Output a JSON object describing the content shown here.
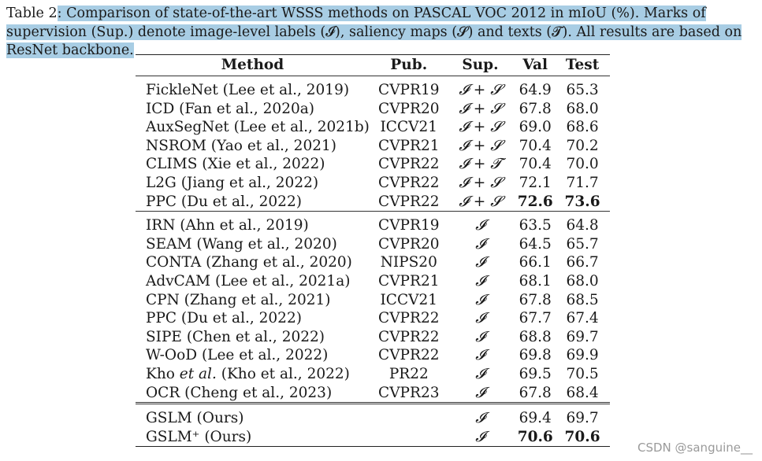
{
  "caption": {
    "prefix": "Table 2",
    "text": ": Comparison of state-of-the-art WSSS methods on PASCAL VOC 2012 in mIoU (%). Marks of supervision (Sup.) denote image-level labels (𝓘), saliency maps (𝓢) and texts (𝓣). All results are based on ResNet backbone."
  },
  "table": {
    "headers": [
      "Method",
      "Pub.",
      "Sup.",
      "Val",
      "Test"
    ],
    "groups": [
      [
        {
          "method": "FickleNet (Lee et al., 2019)",
          "pub": "CVPR19",
          "sup": "𝓘 + 𝓢",
          "val": "64.9",
          "test": "65.3"
        },
        {
          "method": "ICD (Fan et al., 2020a)",
          "pub": "CVPR20",
          "sup": "𝓘 + 𝓢",
          "val": "67.8",
          "test": "68.0"
        },
        {
          "method": "AuxSegNet (Lee et al., 2021b)",
          "pub": "ICCV21",
          "sup": "𝓘 + 𝓢",
          "val": "69.0",
          "test": "68.6"
        },
        {
          "method": "NSROM (Yao et al., 2021)",
          "pub": "CVPR21",
          "sup": "𝓘 + 𝓢",
          "val": "70.4",
          "test": "70.2"
        },
        {
          "method": "CLIMS (Xie et al., 2022)",
          "pub": "CVPR22",
          "sup": "𝓘 + 𝓣",
          "val": "70.4",
          "test": "70.0"
        },
        {
          "method": "L2G (Jiang et al., 2022)",
          "pub": "CVPR22",
          "sup": "𝓘 + 𝓢",
          "val": "72.1",
          "test": "71.7"
        },
        {
          "method": "PPC (Du et al., 2022)",
          "pub": "CVPR22",
          "sup": "𝓘 + 𝓢",
          "val": "72.6",
          "test": "73.6",
          "bold": true
        }
      ],
      [
        {
          "method": "IRN (Ahn et al., 2019)",
          "pub": "CVPR19",
          "sup": "𝓘",
          "val": "63.5",
          "test": "64.8"
        },
        {
          "method": "SEAM (Wang et al., 2020)",
          "pub": "CVPR20",
          "sup": "𝓘",
          "val": "64.5",
          "test": "65.7"
        },
        {
          "method": "CONTA (Zhang et al., 2020)",
          "pub": "NIPS20",
          "sup": "𝓘",
          "val": "66.1",
          "test": "66.7"
        },
        {
          "method": "AdvCAM (Lee et al., 2021a)",
          "pub": "CVPR21",
          "sup": "𝓘",
          "val": "68.1",
          "test": "68.0"
        },
        {
          "method": "CPN (Zhang et al., 2021)",
          "pub": "ICCV21",
          "sup": "𝓘",
          "val": "67.8",
          "test": "68.5"
        },
        {
          "method": "PPC (Du et al., 2022)",
          "pub": "CVPR22",
          "sup": "𝓘",
          "val": "67.7",
          "test": "67.4"
        },
        {
          "method": "SIPE (Chen et al., 2022)",
          "pub": "CVPR22",
          "sup": "𝓘",
          "val": "68.8",
          "test": "69.7"
        },
        {
          "method": "W-OoD (Lee et al., 2022)",
          "pub": "CVPR22",
          "sup": "𝓘",
          "val": "69.8",
          "test": "69.9"
        },
        {
          "method": "Kho et al. (Kho et al., 2022)",
          "pub": "PR22",
          "sup": "𝓘",
          "val": "69.5",
          "test": "70.5"
        },
        {
          "method": "OCR (Cheng et al., 2023)",
          "pub": "CVPR23",
          "sup": "𝓘",
          "val": "67.8",
          "test": "68.4"
        }
      ],
      [
        {
          "method": "GSLM (Ours)",
          "pub": "",
          "sup": "𝓘",
          "val": "69.4",
          "test": "69.7"
        },
        {
          "method": "GSLM⁺ (Ours)",
          "pub": "",
          "sup": "𝓘",
          "val": "70.6",
          "test": "70.6",
          "bold": true
        }
      ]
    ]
  },
  "watermark": "CSDN @sanguine__"
}
